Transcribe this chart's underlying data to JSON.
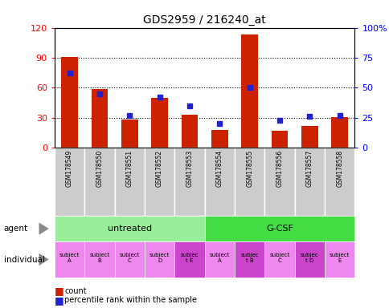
{
  "title": "GDS2959 / 216240_at",
  "samples": [
    "GSM178549",
    "GSM178550",
    "GSM178551",
    "GSM178552",
    "GSM178553",
    "GSM178554",
    "GSM178555",
    "GSM178556",
    "GSM178557",
    "GSM178558"
  ],
  "counts": [
    91,
    59,
    28,
    50,
    33,
    18,
    113,
    17,
    22,
    31
  ],
  "percentile_ranks": [
    62,
    45,
    27,
    42,
    35,
    20,
    50,
    23,
    26,
    27
  ],
  "agent_labels": [
    "untreated",
    "G-CSF"
  ],
  "individual_labels": [
    "subject\nA",
    "subject\nB",
    "subject\nC",
    "subject\nD",
    "subjec\nt E",
    "subject\nA",
    "subjec\nt B",
    "subject\nC",
    "subjec\nt D",
    "subject\nE"
  ],
  "individual_highlight": [
    4,
    6,
    8
  ],
  "left_ylim": [
    0,
    120
  ],
  "right_ylim": [
    0,
    100
  ],
  "left_yticks": [
    0,
    30,
    60,
    90,
    120
  ],
  "right_yticks": [
    0,
    25,
    50,
    75,
    100
  ],
  "right_yticklabels": [
    "0",
    "25",
    "50",
    "75",
    "100%"
  ],
  "bar_color": "#cc2200",
  "percentile_color": "#2222cc",
  "agent_bg_untreated": "#99ee99",
  "agent_bg_gcsf": "#44dd44",
  "individual_bg_normal": "#ee88ee",
  "individual_bg_highlight": "#cc44cc",
  "sample_bg": "#cccccc",
  "bar_width": 0.55,
  "dotted_lines": [
    30,
    60,
    90
  ]
}
